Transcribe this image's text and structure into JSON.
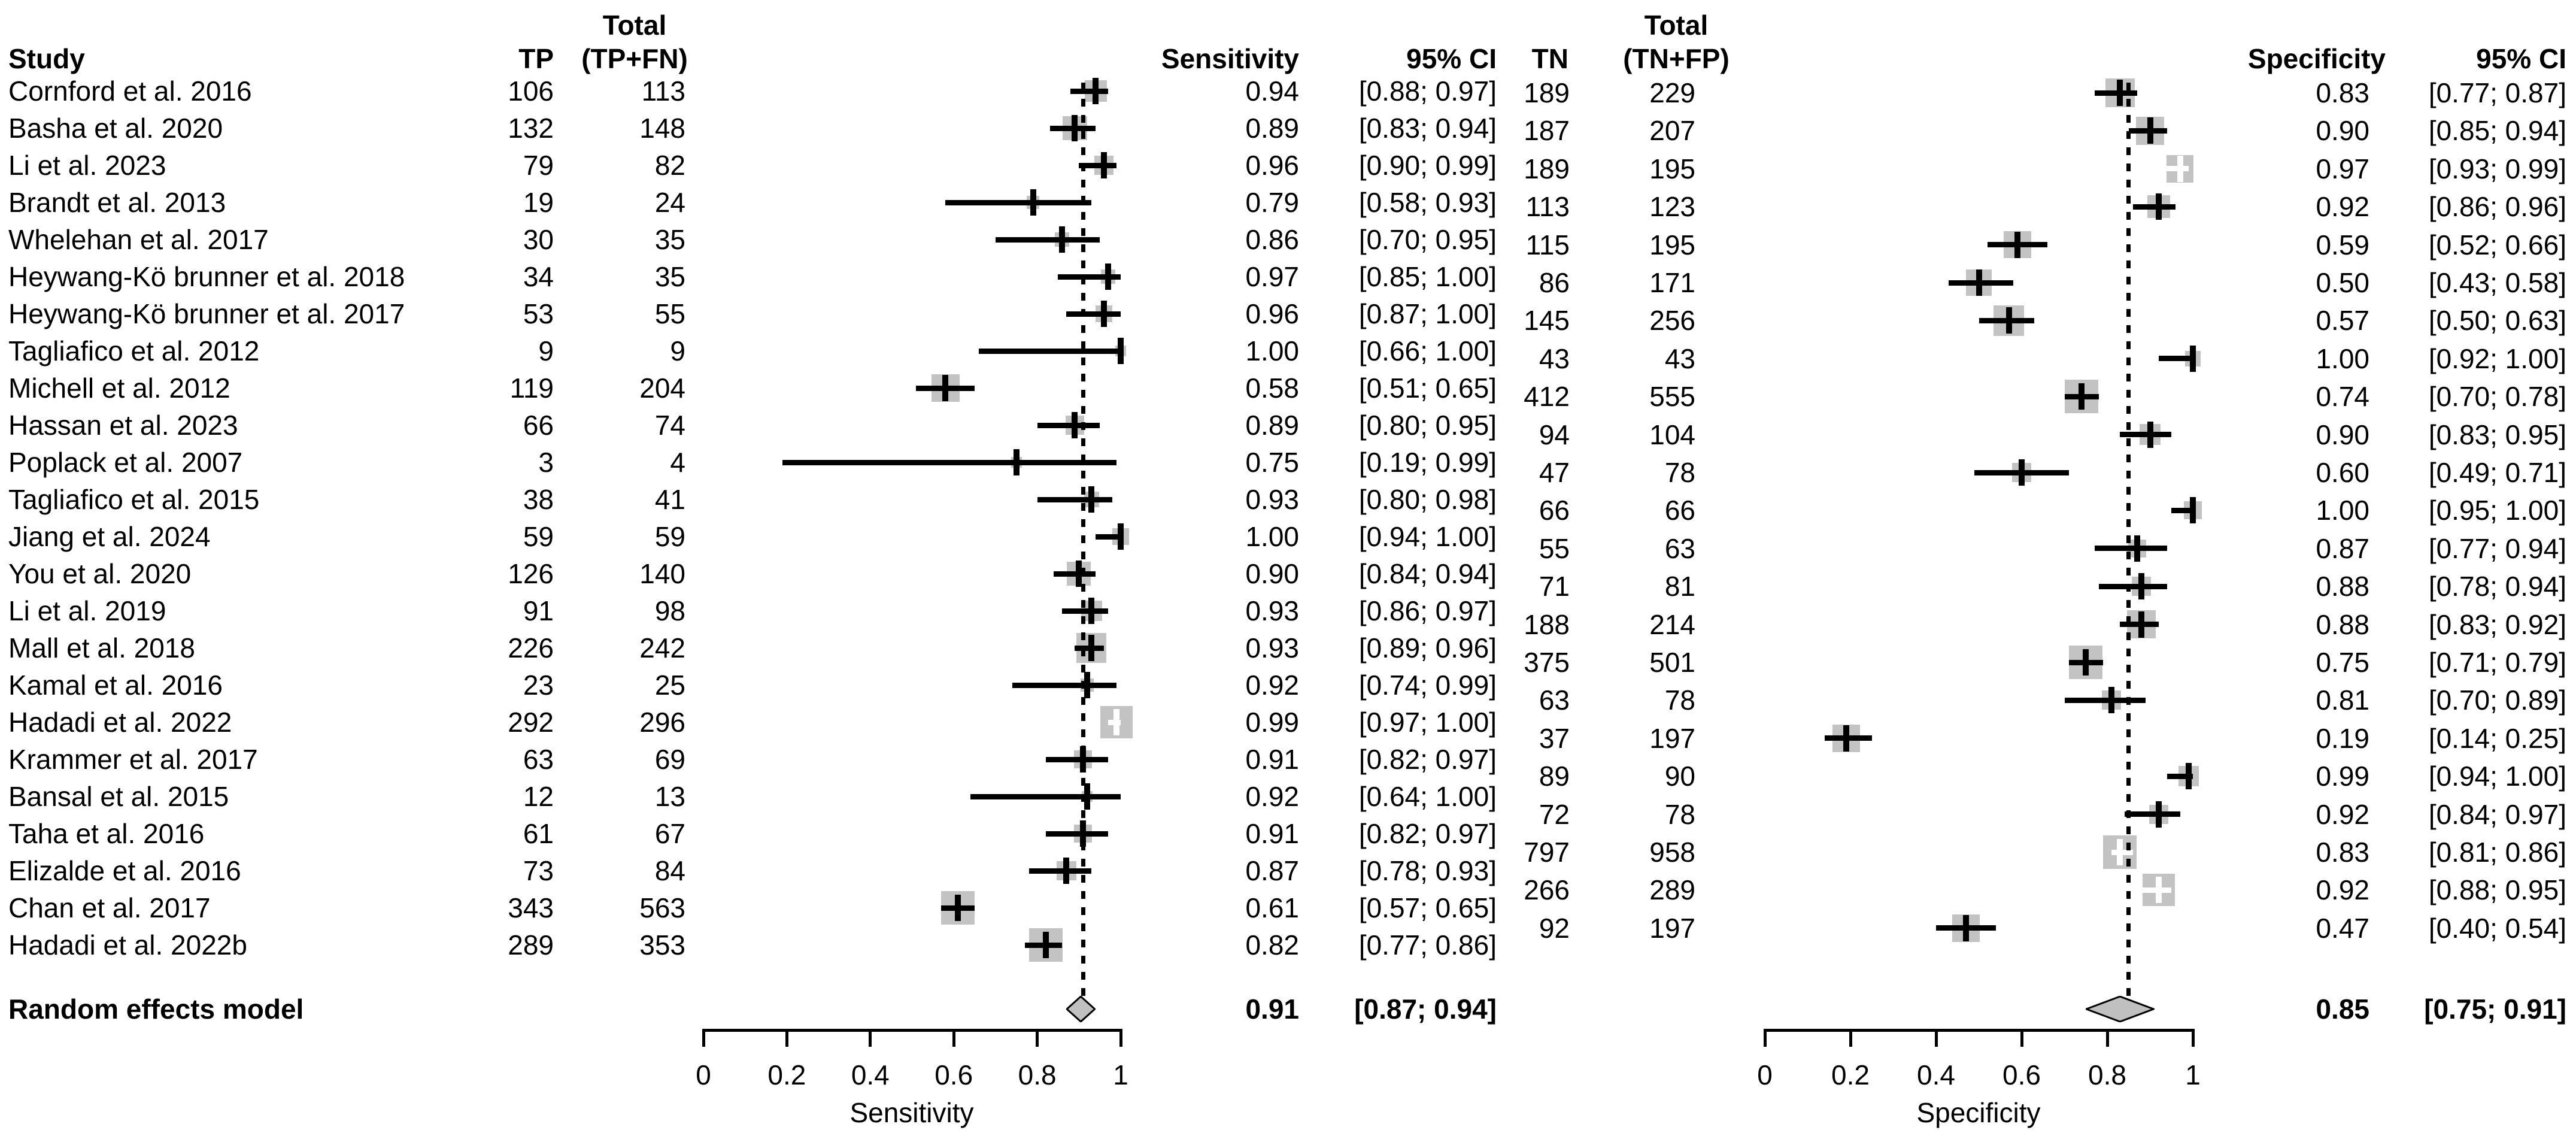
{
  "headers": {
    "study": "Study",
    "tp": "TP",
    "total_tp_fn_line1": "Total",
    "total_tp_fn_line2": "(TP+FN)",
    "sensitivity": "Sensitivity",
    "ci_left": "95% CI",
    "tn": "TN",
    "total_tn_fp_line1": "Total",
    "total_tn_fp_line2": "(TN+FP)",
    "specificity": "Specificity",
    "ci_right": "95% CI"
  },
  "random_effects": {
    "label": "Random effects model",
    "sens_str": "0.91",
    "sens_ci": "[0.87; 0.94]",
    "sens": 0.91,
    "sens_lo": 0.87,
    "sens_hi": 0.94,
    "spec_str": "0.85",
    "spec_ci": "[0.75; 0.91]",
    "spec": 0.85,
    "spec_lo": 0.75,
    "spec_hi": 0.91
  },
  "axes": {
    "tick_labels": [
      "0",
      "0.2",
      "0.4",
      "0.6",
      "0.8",
      "1"
    ],
    "tick_values": [
      0,
      0.2,
      0.4,
      0.6,
      0.8,
      1
    ],
    "xlabel_left": "Sensitivity",
    "xlabel_right": "Specificity"
  },
  "colors": {
    "square": "#c3c3c3",
    "diamond_fill": "#c0c0c0",
    "line": "#000000",
    "background": "#ffffff"
  },
  "chart_data": {
    "type": "forest",
    "subtype": "paired-diagnostic-accuracy-meta-analysis",
    "panels": [
      {
        "title": "Sensitivity",
        "xlim": [
          0,
          1
        ],
        "pooled": 0.91,
        "pooled_ci": [
          0.87,
          0.94
        ]
      },
      {
        "title": "Specificity",
        "xlim": [
          0,
          1
        ],
        "pooled": 0.85,
        "pooled_ci": [
          0.75,
          0.91
        ]
      }
    ],
    "studies": [
      {
        "name": "Cornford et al. 2016",
        "tp": 106,
        "tp_fn": 113,
        "sens": 0.94,
        "sens_lo": 0.88,
        "sens_hi": 0.97,
        "sens_str": "0.94",
        "sens_ci": "[0.88; 0.97]",
        "tn": 189,
        "tn_fp": 229,
        "spec": 0.83,
        "spec_lo": 0.77,
        "spec_hi": 0.87,
        "spec_str": "0.83",
        "spec_ci": "[0.77; 0.87]"
      },
      {
        "name": "Basha et al. 2020",
        "tp": 132,
        "tp_fn": 148,
        "sens": 0.89,
        "sens_lo": 0.83,
        "sens_hi": 0.94,
        "sens_str": "0.89",
        "sens_ci": "[0.83; 0.94]",
        "tn": 187,
        "tn_fp": 207,
        "spec": 0.9,
        "spec_lo": 0.85,
        "spec_hi": 0.94,
        "spec_str": "0.90",
        "spec_ci": "[0.85; 0.94]"
      },
      {
        "name": "Li et al. 2023",
        "tp": 79,
        "tp_fn": 82,
        "sens": 0.96,
        "sens_lo": 0.9,
        "sens_hi": 0.99,
        "sens_str": "0.96",
        "sens_ci": "[0.90; 0.99]",
        "tn": 189,
        "tn_fp": 195,
        "spec": 0.97,
        "spec_lo": 0.93,
        "spec_hi": 0.99,
        "spec_str": "0.97",
        "spec_ci": "[0.93; 0.99]"
      },
      {
        "name": "Brandt et al. 2013",
        "tp": 19,
        "tp_fn": 24,
        "sens": 0.79,
        "sens_lo": 0.58,
        "sens_hi": 0.93,
        "sens_str": "0.79",
        "sens_ci": "[0.58; 0.93]",
        "tn": 113,
        "tn_fp": 123,
        "spec": 0.92,
        "spec_lo": 0.86,
        "spec_hi": 0.96,
        "spec_str": "0.92",
        "spec_ci": "[0.86; 0.96]"
      },
      {
        "name": "Whelehan et al. 2017",
        "tp": 30,
        "tp_fn": 35,
        "sens": 0.86,
        "sens_lo": 0.7,
        "sens_hi": 0.95,
        "sens_str": "0.86",
        "sens_ci": "[0.70; 0.95]",
        "tn": 115,
        "tn_fp": 195,
        "spec": 0.59,
        "spec_lo": 0.52,
        "spec_hi": 0.66,
        "spec_str": "0.59",
        "spec_ci": "[0.52; 0.66]"
      },
      {
        "name": "Heywang-Kö brunner et al. 2018",
        "tp": 34,
        "tp_fn": 35,
        "sens": 0.97,
        "sens_lo": 0.85,
        "sens_hi": 1.0,
        "sens_str": "0.97",
        "sens_ci": "[0.85; 1.00]",
        "tn": 86,
        "tn_fp": 171,
        "spec": 0.5,
        "spec_lo": 0.43,
        "spec_hi": 0.58,
        "spec_str": "0.50",
        "spec_ci": "[0.43; 0.58]"
      },
      {
        "name": "Heywang-Kö brunner et al. 2017",
        "tp": 53,
        "tp_fn": 55,
        "sens": 0.96,
        "sens_lo": 0.87,
        "sens_hi": 1.0,
        "sens_str": "0.96",
        "sens_ci": "[0.87; 1.00]",
        "tn": 145,
        "tn_fp": 256,
        "spec": 0.57,
        "spec_lo": 0.5,
        "spec_hi": 0.63,
        "spec_str": "0.57",
        "spec_ci": "[0.50; 0.63]"
      },
      {
        "name": "Tagliafico et al. 2012",
        "tp": 9,
        "tp_fn": 9,
        "sens": 1.0,
        "sens_lo": 0.66,
        "sens_hi": 1.0,
        "sens_str": "1.00",
        "sens_ci": "[0.66; 1.00]",
        "tn": 43,
        "tn_fp": 43,
        "spec": 1.0,
        "spec_lo": 0.92,
        "spec_hi": 1.0,
        "spec_str": "1.00",
        "spec_ci": "[0.92; 1.00]"
      },
      {
        "name": "Michell et al. 2012",
        "tp": 119,
        "tp_fn": 204,
        "sens": 0.58,
        "sens_lo": 0.51,
        "sens_hi": 0.65,
        "sens_str": "0.58",
        "sens_ci": "[0.51; 0.65]",
        "tn": 412,
        "tn_fp": 555,
        "spec": 0.74,
        "spec_lo": 0.7,
        "spec_hi": 0.78,
        "spec_str": "0.74",
        "spec_ci": "[0.70; 0.78]"
      },
      {
        "name": "Hassan et al. 2023",
        "tp": 66,
        "tp_fn": 74,
        "sens": 0.89,
        "sens_lo": 0.8,
        "sens_hi": 0.95,
        "sens_str": "0.89",
        "sens_ci": "[0.80; 0.95]",
        "tn": 94,
        "tn_fp": 104,
        "spec": 0.9,
        "spec_lo": 0.83,
        "spec_hi": 0.95,
        "spec_str": "0.90",
        "spec_ci": "[0.83; 0.95]"
      },
      {
        "name": "Poplack et al. 2007",
        "tp": 3,
        "tp_fn": 4,
        "sens": 0.75,
        "sens_lo": 0.19,
        "sens_hi": 0.99,
        "sens_str": "0.75",
        "sens_ci": "[0.19; 0.99]",
        "tn": 47,
        "tn_fp": 78,
        "spec": 0.6,
        "spec_lo": 0.49,
        "spec_hi": 0.71,
        "spec_str": "0.60",
        "spec_ci": "[0.49; 0.71]"
      },
      {
        "name": "Tagliafico et al. 2015",
        "tp": 38,
        "tp_fn": 41,
        "sens": 0.93,
        "sens_lo": 0.8,
        "sens_hi": 0.98,
        "sens_str": "0.93",
        "sens_ci": "[0.80; 0.98]",
        "tn": 66,
        "tn_fp": 66,
        "spec": 1.0,
        "spec_lo": 0.95,
        "spec_hi": 1.0,
        "spec_str": "1.00",
        "spec_ci": "[0.95; 1.00]"
      },
      {
        "name": "Jiang et al. 2024",
        "tp": 59,
        "tp_fn": 59,
        "sens": 1.0,
        "sens_lo": 0.94,
        "sens_hi": 1.0,
        "sens_str": "1.00",
        "sens_ci": "[0.94; 1.00]",
        "tn": 55,
        "tn_fp": 63,
        "spec": 0.87,
        "spec_lo": 0.77,
        "spec_hi": 0.94,
        "spec_str": "0.87",
        "spec_ci": "[0.77; 0.94]"
      },
      {
        "name": "You et al. 2020",
        "tp": 126,
        "tp_fn": 140,
        "sens": 0.9,
        "sens_lo": 0.84,
        "sens_hi": 0.94,
        "sens_str": "0.90",
        "sens_ci": "[0.84; 0.94]",
        "tn": 71,
        "tn_fp": 81,
        "spec": 0.88,
        "spec_lo": 0.78,
        "spec_hi": 0.94,
        "spec_str": "0.88",
        "spec_ci": "[0.78; 0.94]"
      },
      {
        "name": "Li et al. 2019",
        "tp": 91,
        "tp_fn": 98,
        "sens": 0.93,
        "sens_lo": 0.86,
        "sens_hi": 0.97,
        "sens_str": "0.93",
        "sens_ci": "[0.86; 0.97]",
        "tn": 188,
        "tn_fp": 214,
        "spec": 0.88,
        "spec_lo": 0.83,
        "spec_hi": 0.92,
        "spec_str": "0.88",
        "spec_ci": "[0.83; 0.92]"
      },
      {
        "name": "Mall et al. 2018",
        "tp": 226,
        "tp_fn": 242,
        "sens": 0.93,
        "sens_lo": 0.89,
        "sens_hi": 0.96,
        "sens_str": "0.93",
        "sens_ci": "[0.89; 0.96]",
        "tn": 375,
        "tn_fp": 501,
        "spec": 0.75,
        "spec_lo": 0.71,
        "spec_hi": 0.79,
        "spec_str": "0.75",
        "spec_ci": "[0.71; 0.79]"
      },
      {
        "name": "Kamal et al. 2016",
        "tp": 23,
        "tp_fn": 25,
        "sens": 0.92,
        "sens_lo": 0.74,
        "sens_hi": 0.99,
        "sens_str": "0.92",
        "sens_ci": "[0.74; 0.99]",
        "tn": 63,
        "tn_fp": 78,
        "spec": 0.81,
        "spec_lo": 0.7,
        "spec_hi": 0.89,
        "spec_str": "0.81",
        "spec_ci": "[0.70; 0.89]"
      },
      {
        "name": "Hadadi et al. 2022",
        "tp": 292,
        "tp_fn": 296,
        "sens": 0.99,
        "sens_lo": 0.97,
        "sens_hi": 1.0,
        "sens_str": "0.99",
        "sens_ci": "[0.97; 1.00]",
        "tn": 37,
        "tn_fp": 197,
        "spec": 0.19,
        "spec_lo": 0.14,
        "spec_hi": 0.25,
        "spec_str": "0.19",
        "spec_ci": "[0.14; 0.25]"
      },
      {
        "name": "Krammer et al. 2017",
        "tp": 63,
        "tp_fn": 69,
        "sens": 0.91,
        "sens_lo": 0.82,
        "sens_hi": 0.97,
        "sens_str": "0.91",
        "sens_ci": "[0.82; 0.97]",
        "tn": 89,
        "tn_fp": 90,
        "spec": 0.99,
        "spec_lo": 0.94,
        "spec_hi": 1.0,
        "spec_str": "0.99",
        "spec_ci": "[0.94; 1.00]"
      },
      {
        "name": "Bansal et al. 2015",
        "tp": 12,
        "tp_fn": 13,
        "sens": 0.92,
        "sens_lo": 0.64,
        "sens_hi": 1.0,
        "sens_str": "0.92",
        "sens_ci": "[0.64; 1.00]",
        "tn": 72,
        "tn_fp": 78,
        "spec": 0.92,
        "spec_lo": 0.84,
        "spec_hi": 0.97,
        "spec_str": "0.92",
        "spec_ci": "[0.84; 0.97]"
      },
      {
        "name": "Taha et al. 2016",
        "tp": 61,
        "tp_fn": 67,
        "sens": 0.91,
        "sens_lo": 0.82,
        "sens_hi": 0.97,
        "sens_str": "0.91",
        "sens_ci": "[0.82; 0.97]",
        "tn": 797,
        "tn_fp": 958,
        "spec": 0.83,
        "spec_lo": 0.81,
        "spec_hi": 0.86,
        "spec_str": "0.83",
        "spec_ci": "[0.81; 0.86]"
      },
      {
        "name": "Elizalde et al. 2016",
        "tp": 73,
        "tp_fn": 84,
        "sens": 0.87,
        "sens_lo": 0.78,
        "sens_hi": 0.93,
        "sens_str": "0.87",
        "sens_ci": "[0.78; 0.93]",
        "tn": 266,
        "tn_fp": 289,
        "spec": 0.92,
        "spec_lo": 0.88,
        "spec_hi": 0.95,
        "spec_str": "0.92",
        "spec_ci": "[0.88; 0.95]"
      },
      {
        "name": "Chan et al. 2017",
        "tp": 343,
        "tp_fn": 563,
        "sens": 0.61,
        "sens_lo": 0.57,
        "sens_hi": 0.65,
        "sens_str": "0.61",
        "sens_ci": "[0.57; 0.65]",
        "tn": 92,
        "tn_fp": 197,
        "spec": 0.47,
        "spec_lo": 0.4,
        "spec_hi": 0.54,
        "spec_str": "0.47",
        "spec_ci": "[0.40; 0.54]"
      },
      {
        "name": "Hadadi et al. 2022b",
        "tp": 289,
        "tp_fn": 353,
        "sens": 0.82,
        "sens_lo": 0.77,
        "sens_hi": 0.86,
        "sens_str": "0.82",
        "sens_ci": "[0.77; 0.86]",
        "tn": null,
        "tn_fp": null,
        "spec": null,
        "spec_lo": null,
        "spec_hi": null,
        "spec_str": null,
        "spec_ci": null
      }
    ]
  }
}
